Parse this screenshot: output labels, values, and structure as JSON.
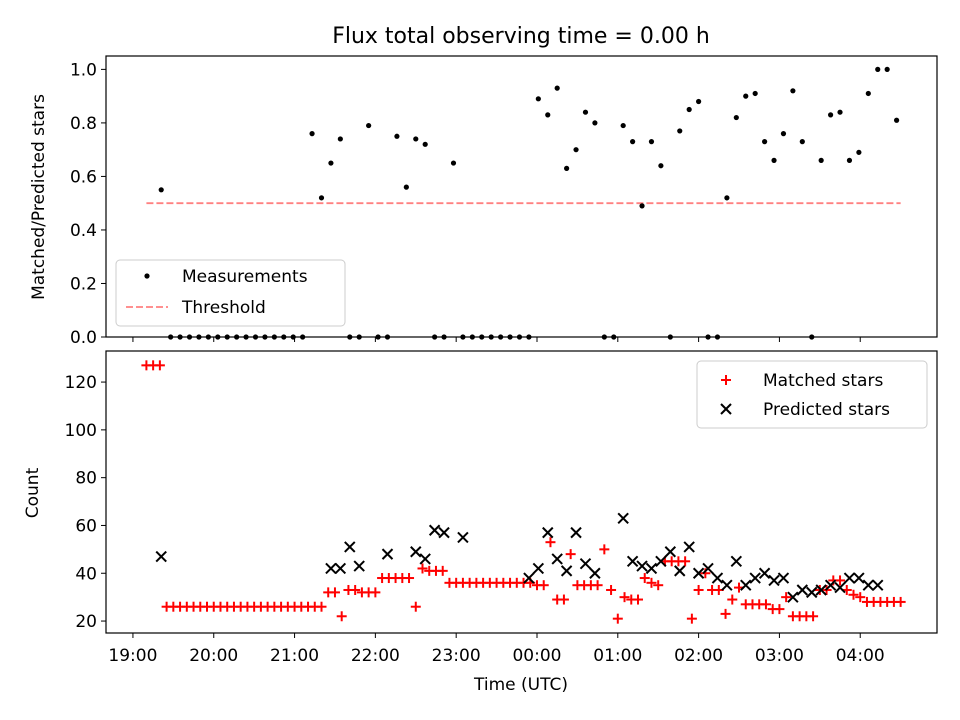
{
  "chart_data": [
    {
      "type": "scatter",
      "title": "Flux total observing time = 0.00 h",
      "xlabel": "",
      "ylabel": "Matched/Predicted stars",
      "xlim": [
        "18:40",
        "04:57"
      ],
      "ylim": [
        0,
        1.05
      ],
      "yticks": [
        0.0,
        0.2,
        0.4,
        0.6,
        0.8,
        1.0
      ],
      "ytick_labels": [
        "0.0",
        "0.2",
        "0.4",
        "0.6",
        "0.8",
        "1.0"
      ],
      "grid": false,
      "legend": "lower-left",
      "series": [
        {
          "name": "Measurements",
          "kind": "points",
          "color": "#000000",
          "x": [
            "19:21",
            "19:28",
            "19:35",
            "19:42",
            "19:49",
            "19:56",
            "20:03",
            "20:10",
            "20:17",
            "20:24",
            "20:31",
            "20:38",
            "20:45",
            "20:52",
            "20:59",
            "21:06",
            "21:13",
            "21:20",
            "21:27",
            "21:34",
            "21:41",
            "21:48",
            "21:55",
            "22:02",
            "22:09",
            "22:16",
            "22:23",
            "22:30",
            "22:37",
            "22:44",
            "22:51",
            "22:58",
            "23:05",
            "23:12",
            "23:19",
            "23:26",
            "23:33",
            "23:40",
            "23:47",
            "23:54",
            "00:01",
            "00:08",
            "00:15",
            "00:22",
            "00:29",
            "00:36",
            "00:43",
            "00:50",
            "00:57",
            "01:04",
            "01:11",
            "01:18",
            "01:25",
            "01:32",
            "01:39",
            "01:46",
            "01:53",
            "02:00",
            "02:07",
            "02:14",
            "02:21",
            "02:28",
            "02:35",
            "02:42",
            "02:49",
            "02:56",
            "03:03",
            "03:10",
            "03:17",
            "03:24",
            "03:31",
            "03:38",
            "03:45",
            "03:52",
            "03:59",
            "04:06",
            "04:13",
            "04:20",
            "04:27"
          ],
          "y": [
            0.55,
            0.0,
            0.0,
            0.0,
            0.0,
            0.0,
            0.0,
            0.0,
            0.0,
            0.0,
            0.0,
            0.0,
            0.0,
            0.0,
            0.0,
            0.0,
            0.76,
            0.52,
            0.65,
            0.74,
            0.0,
            0.0,
            0.79,
            0.0,
            0.0,
            0.75,
            0.56,
            0.74,
            0.72,
            0.0,
            0.0,
            0.65,
            0.0,
            0.0,
            0.0,
            0.0,
            0.0,
            0.0,
            0.0,
            0.0,
            0.89,
            0.83,
            0.93,
            0.63,
            0.7,
            0.84,
            0.8,
            0.0,
            0.0,
            0.79,
            0.73,
            0.49,
            0.73,
            0.64,
            0.0,
            0.77,
            0.85,
            0.88,
            0.0,
            0.0,
            0.52,
            0.82,
            0.9,
            0.91,
            0.73,
            0.66,
            0.76,
            0.92,
            0.73,
            0.0,
            0.66,
            0.83,
            0.84,
            0.66,
            0.69,
            0.91,
            1.0,
            1.0,
            0.81
          ]
        },
        {
          "name": "Threshold",
          "kind": "dashed-line",
          "color": "#ff8080",
          "x": [
            "19:10",
            "04:30"
          ],
          "y": [
            0.5,
            0.5
          ]
        }
      ]
    },
    {
      "type": "scatter",
      "title": "",
      "xlabel": "Time (UTC)",
      "ylabel": "Count",
      "xlim": [
        "18:40",
        "04:57"
      ],
      "ylim": [
        15,
        133
      ],
      "yticks": [
        20,
        40,
        60,
        80,
        100,
        120
      ],
      "xticks": [
        "19:00",
        "20:00",
        "21:00",
        "22:00",
        "23:00",
        "00:00",
        "01:00",
        "02:00",
        "03:00",
        "04:00"
      ],
      "grid": false,
      "legend": "top-right",
      "series": [
        {
          "name": "Matched stars",
          "marker": "plus",
          "color": "#ff0000",
          "x": [
            "19:10",
            "19:15",
            "19:20",
            "19:25",
            "19:30",
            "19:35",
            "19:40",
            "19:45",
            "19:50",
            "19:55",
            "20:00",
            "20:05",
            "20:10",
            "20:15",
            "20:20",
            "20:25",
            "20:30",
            "20:35",
            "20:40",
            "20:45",
            "20:50",
            "20:55",
            "21:00",
            "21:05",
            "21:10",
            "21:15",
            "21:20",
            "21:25",
            "21:30",
            "21:35",
            "21:40",
            "21:45",
            "21:50",
            "21:55",
            "22:00",
            "22:05",
            "22:10",
            "22:15",
            "22:20",
            "22:25",
            "22:30",
            "22:35",
            "22:40",
            "22:45",
            "22:50",
            "22:55",
            "23:00",
            "23:05",
            "23:10",
            "23:15",
            "23:20",
            "23:25",
            "23:30",
            "23:35",
            "23:40",
            "23:45",
            "23:50",
            "23:55",
            "00:00",
            "00:05",
            "00:10",
            "00:15",
            "00:20",
            "00:25",
            "00:30",
            "00:35",
            "00:40",
            "00:45",
            "00:50",
            "00:55",
            "01:00",
            "01:05",
            "01:10",
            "01:15",
            "01:20",
            "01:25",
            "01:30",
            "01:35",
            "01:40",
            "01:45",
            "01:50",
            "01:55",
            "02:00",
            "02:05",
            "02:10",
            "02:15",
            "02:20",
            "02:25",
            "02:30",
            "02:35",
            "02:40",
            "02:45",
            "02:50",
            "02:55",
            "03:00",
            "03:05",
            "03:10",
            "03:15",
            "03:20",
            "03:25",
            "03:30",
            "03:35",
            "03:40",
            "03:45",
            "03:50",
            "03:55",
            "04:00",
            "04:05",
            "04:10",
            "04:15",
            "04:20",
            "04:25",
            "04:30"
          ],
          "y": [
            127,
            127,
            127,
            26,
            26,
            26,
            26,
            26,
            26,
            26,
            26,
            26,
            26,
            26,
            26,
            26,
            26,
            26,
            26,
            26,
            26,
            26,
            26,
            26,
            26,
            26,
            26,
            32,
            32,
            22,
            33,
            33,
            32,
            32,
            32,
            38,
            38,
            38,
            38,
            38,
            26,
            42,
            41,
            41,
            41,
            36,
            36,
            36,
            36,
            36,
            36,
            36,
            36,
            36,
            36,
            36,
            36,
            36,
            35,
            35,
            53,
            29,
            29,
            48,
            35,
            35,
            35,
            35,
            50,
            33,
            21,
            30,
            29,
            29,
            38,
            36,
            35,
            45,
            45,
            45,
            45,
            21,
            33,
            40,
            33,
            33,
            23,
            29,
            34,
            27,
            27,
            27,
            27,
            25,
            25,
            30,
            22,
            22,
            22,
            22,
            33,
            33,
            37,
            37,
            33,
            31,
            30,
            28,
            28,
            28,
            28,
            28,
            28
          ]
        },
        {
          "name": "Predicted stars",
          "marker": "x",
          "color": "#000000",
          "x": [
            "19:21",
            "21:27",
            "21:34",
            "21:41",
            "21:48",
            "22:09",
            "22:30",
            "22:37",
            "22:44",
            "22:51",
            "23:05",
            "23:54",
            "00:01",
            "00:08",
            "00:15",
            "00:22",
            "00:29",
            "00:36",
            "00:43",
            "01:04",
            "01:11",
            "01:18",
            "01:25",
            "01:32",
            "01:39",
            "01:46",
            "01:53",
            "02:00",
            "02:07",
            "02:14",
            "02:21",
            "02:28",
            "02:35",
            "02:42",
            "02:49",
            "02:56",
            "03:03",
            "03:10",
            "03:17",
            "03:24",
            "03:31",
            "03:38",
            "03:45",
            "03:52",
            "03:59",
            "04:06",
            "04:13"
          ],
          "y": [
            47,
            42,
            42,
            51,
            43,
            48,
            49,
            46,
            58,
            57,
            55,
            38,
            42,
            57,
            46,
            41,
            57,
            44,
            40,
            63,
            45,
            43,
            42,
            45,
            49,
            41,
            51,
            40,
            42,
            38,
            35,
            45,
            35,
            38,
            40,
            37,
            38,
            30,
            33,
            32,
            33,
            35,
            34,
            38,
            38,
            35,
            35
          ]
        }
      ]
    }
  ]
}
